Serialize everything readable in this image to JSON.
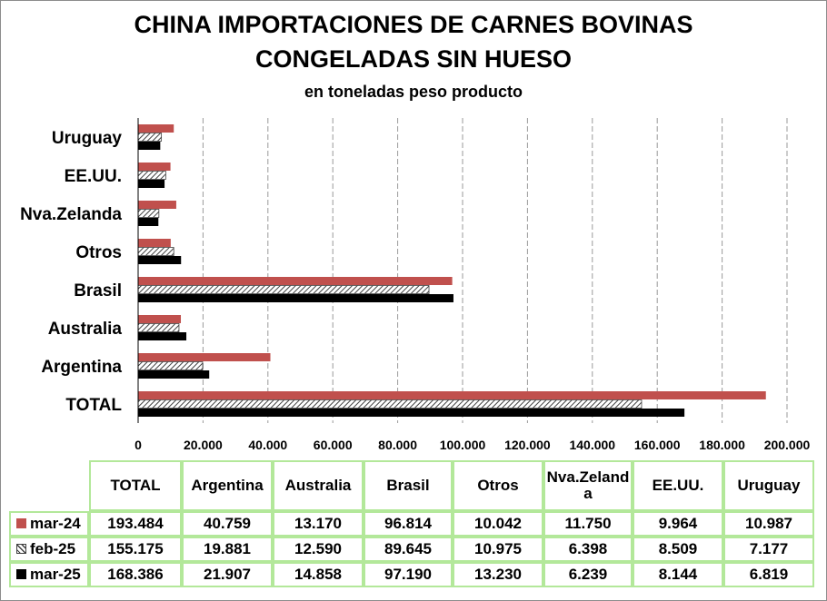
{
  "colors": {
    "mar-24": "#c0504d",
    "feb-25": "hatch-dark-grey",
    "mar-25": "#000000",
    "grid": "#9a9a9a",
    "table_border": "#b3e89a"
  },
  "chart_data": {
    "type": "bar",
    "orientation": "horizontal",
    "title": "CHINA IMPORTACIONES DE CARNES BOVINAS CONGELADAS SIN HUESO",
    "title_line1": "CHINA IMPORTACIONES DE CARNES BOVINAS",
    "title_line2": "CONGELADAS SIN HUESO",
    "subtitle": "en toneladas peso producto",
    "categories": [
      "TOTAL",
      "Argentina",
      "Australia",
      "Brasil",
      "Otros",
      "Nva.Zelanda",
      "EE.UU.",
      "Uruguay"
    ],
    "category_axis_order_bottom_to_top": true,
    "series": [
      {
        "name": "mar-24",
        "color": "#c0504d",
        "pattern": "solid",
        "values": [
          193484,
          40759,
          13170,
          96814,
          10042,
          11750,
          9964,
          10987
        ],
        "labels": [
          "193.484",
          "40.759",
          "13.170",
          "96.814",
          "10.042",
          "11.750",
          "9.964",
          "10.987"
        ]
      },
      {
        "name": "feb-25",
        "color": "#404040",
        "pattern": "diagonal-hatch",
        "values": [
          155175,
          19881,
          12590,
          89645,
          10975,
          6398,
          8509,
          7177
        ],
        "labels": [
          "155.175",
          "19.881",
          "12.590",
          "89.645",
          "10.975",
          "6.398",
          "8.509",
          "7.177"
        ]
      },
      {
        "name": "mar-25",
        "color": "#000000",
        "pattern": "solid",
        "values": [
          168386,
          21907,
          14858,
          97190,
          13230,
          6239,
          8144,
          6819
        ],
        "labels": [
          "168.386",
          "21.907",
          "14.858",
          "97.190",
          "13.230",
          "6.239",
          "8.144",
          "6.819"
        ]
      }
    ],
    "xlim": [
      0,
      200000
    ],
    "xticks": [
      0,
      20000,
      40000,
      60000,
      80000,
      100000,
      120000,
      140000,
      160000,
      180000,
      200000
    ],
    "xtick_labels": [
      "0",
      "20.000",
      "40.000",
      "60.000",
      "80.000",
      "100.000",
      "120.000",
      "140.000",
      "160.000",
      "180.000",
      "200.000"
    ],
    "grid": "vertical dashed",
    "legend": "in data table"
  },
  "table": {
    "headers": [
      "TOTAL",
      "Argentina",
      "Australia",
      "Brasil",
      "Otros",
      "Nva.Zeland",
      "EE.UU.",
      "Uruguay"
    ],
    "header_wrap_suffix": "a"
  }
}
